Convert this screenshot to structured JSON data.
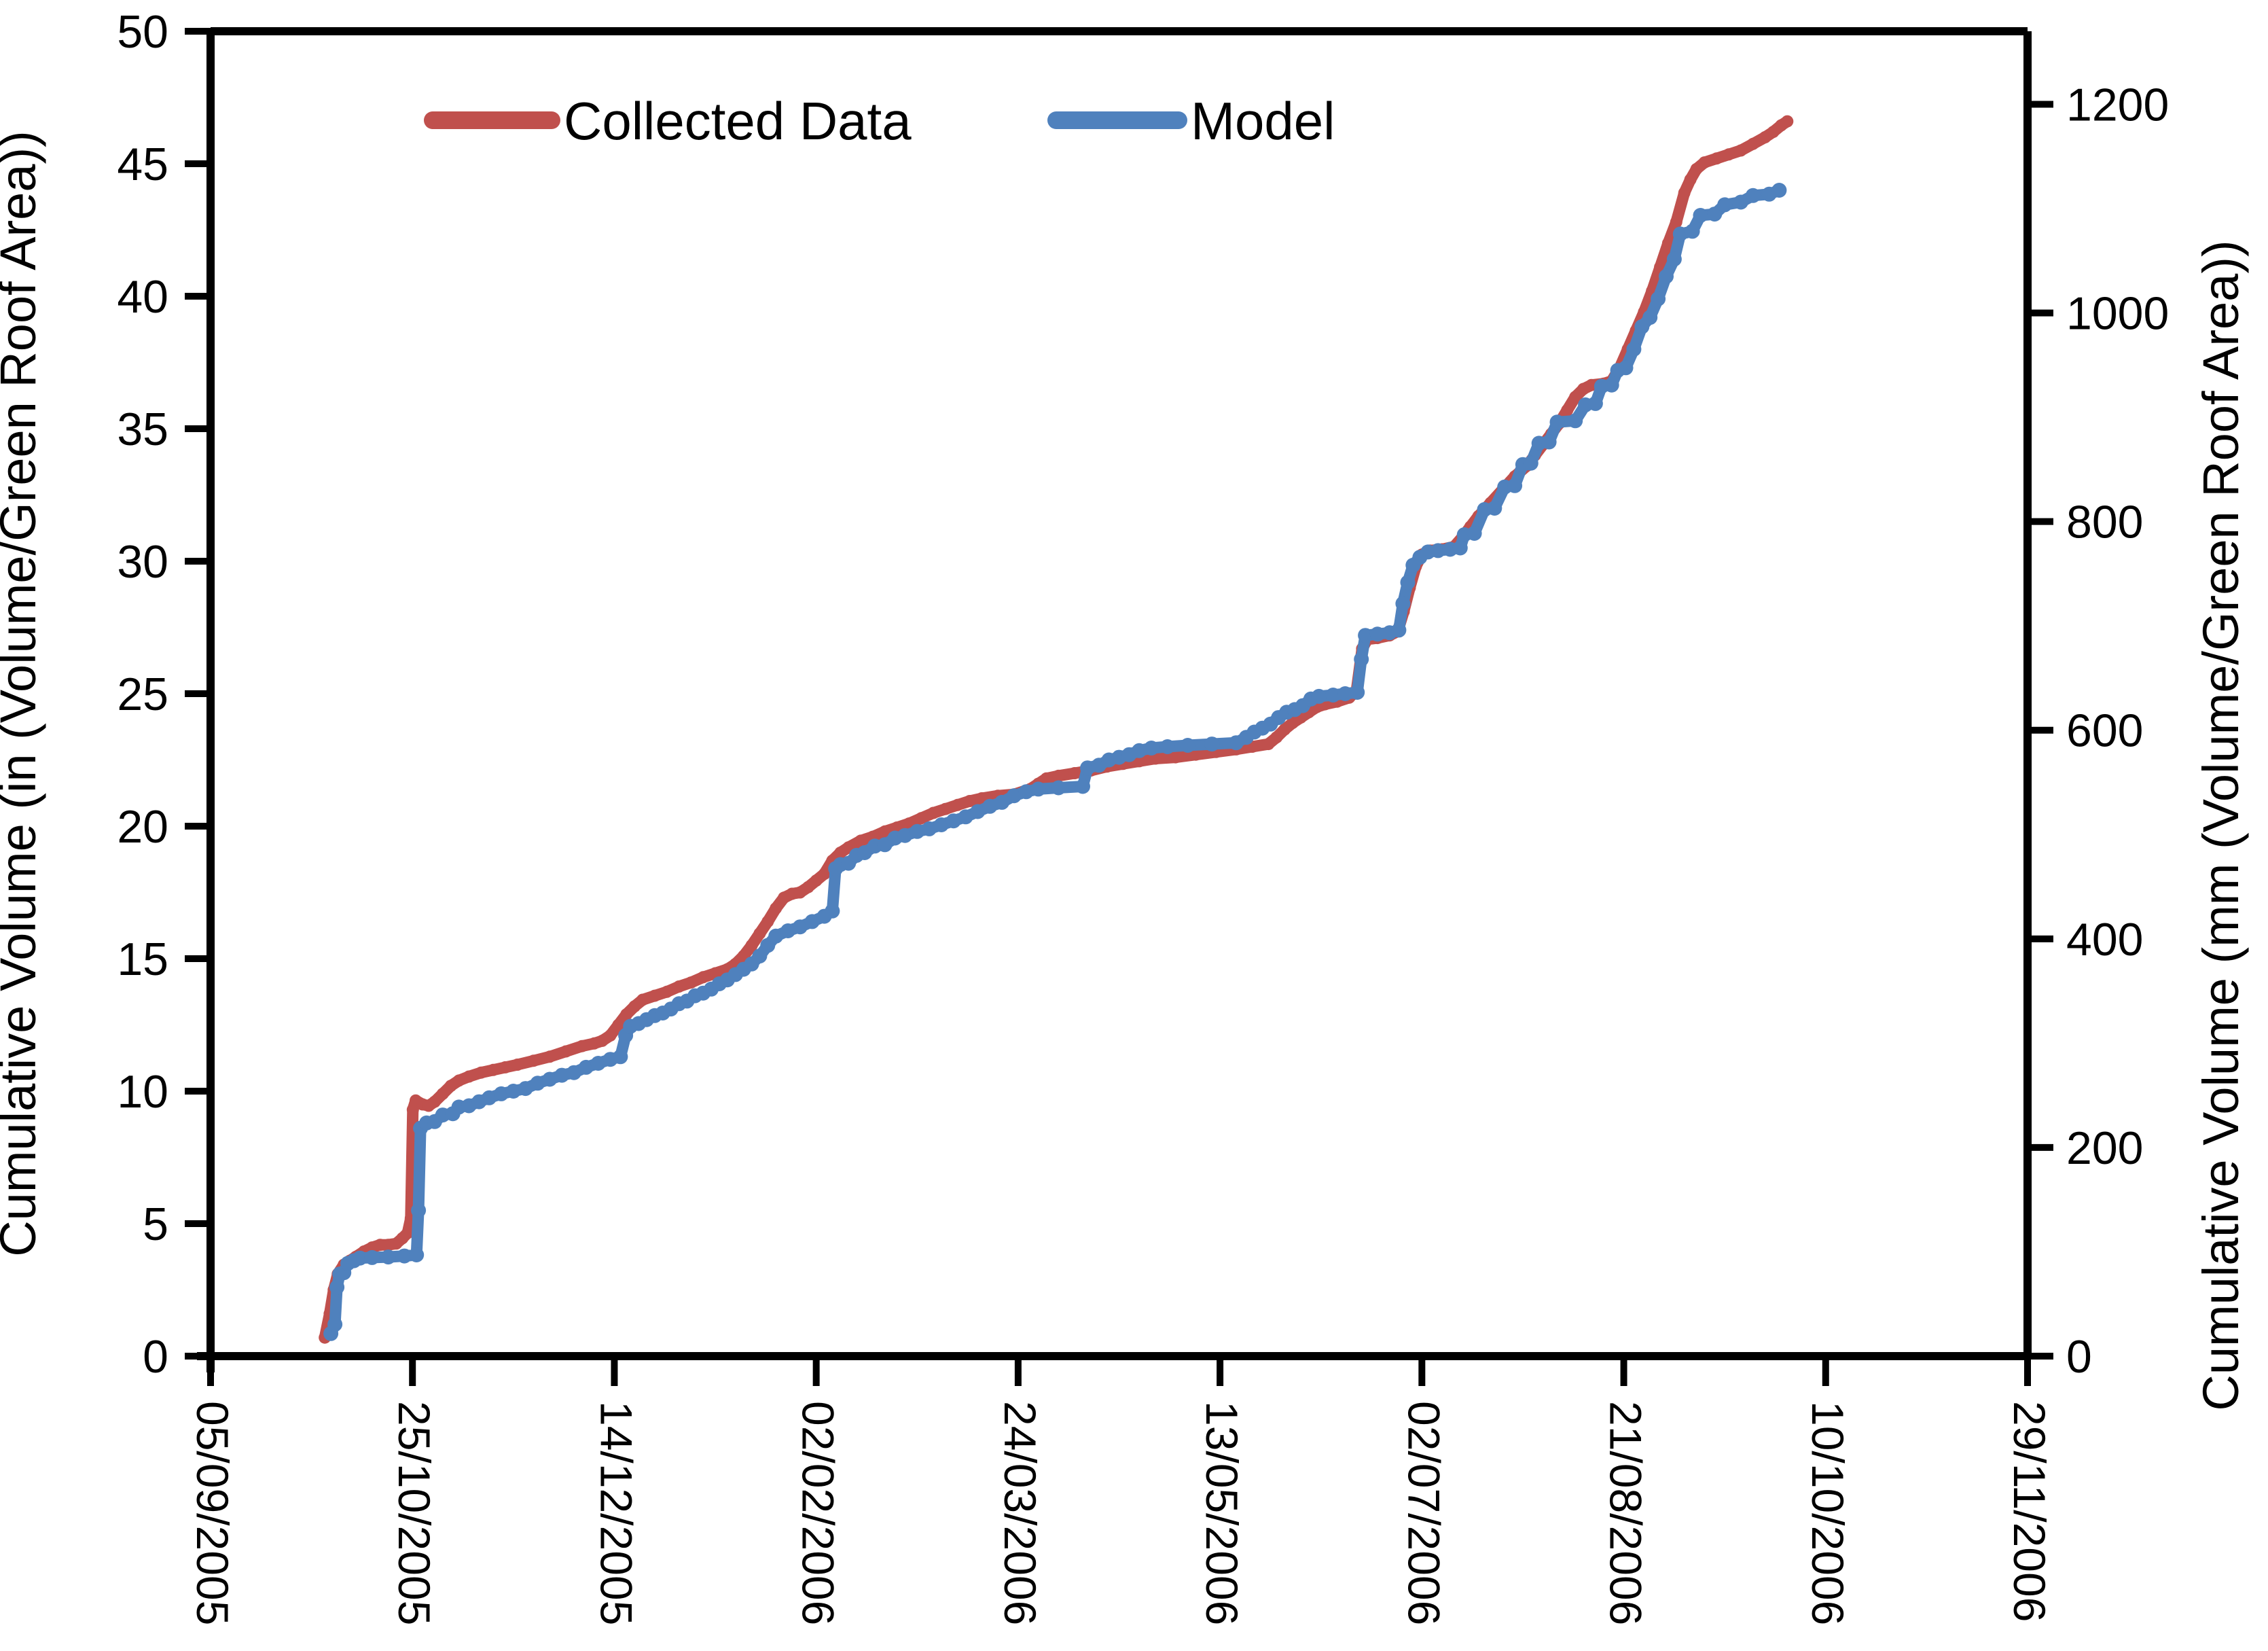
{
  "chart_data": {
    "type": "line",
    "title": "",
    "x_unit": "days since 05/09/2005",
    "x_range_days": [
      0,
      450
    ],
    "x_axis": {
      "tick_interval_days": 50,
      "tick_labels": [
        "05/09/2005",
        "25/10/2005",
        "14/12/2005",
        "02/02/2006",
        "24/03/2006",
        "13/05/2006",
        "02/07/2006",
        "21/08/2006",
        "10/10/2006",
        "29/11/2006"
      ]
    },
    "y_left": {
      "label": "Cumulative Volume (in (Volume/Green Roof Area))",
      "min": 0,
      "max": 50,
      "tick_step": 5,
      "tick_labels": [
        "0",
        "5",
        "10",
        "15",
        "20",
        "25",
        "30",
        "35",
        "40",
        "45",
        "50"
      ]
    },
    "y_right": {
      "label": "Cumulative Volume (mm (Volume/Green Roof Area))",
      "min": 0,
      "max": 1270,
      "tick_step": 200,
      "mm_per_in": 25.4,
      "tick_labels": [
        "0",
        "200",
        "400",
        "600",
        "800",
        "1000",
        "1200"
      ]
    },
    "legend_position": "top-center-inside",
    "grid": false,
    "series": [
      {
        "name": "Collected Data",
        "color": "#C0504D",
        "marker_radius": 9,
        "points": [
          [
            28.3,
            0.7
          ],
          [
            29.5,
            1.6
          ],
          [
            30.5,
            2.5
          ],
          [
            31.5,
            3.1
          ],
          [
            33,
            3.45
          ],
          [
            34.5,
            3.6
          ],
          [
            36,
            3.75
          ],
          [
            38,
            3.95
          ],
          [
            40,
            4.1
          ],
          [
            42,
            4.2
          ],
          [
            44,
            4.2
          ],
          [
            46,
            4.25
          ],
          [
            47.5,
            4.45
          ],
          [
            48.8,
            4.65
          ],
          [
            49.6,
            5.2
          ],
          [
            50.1,
            9.3
          ],
          [
            50.8,
            9.65
          ],
          [
            52.5,
            9.5
          ],
          [
            54,
            9.45
          ],
          [
            55.5,
            9.6
          ],
          [
            57.5,
            9.9
          ],
          [
            59.5,
            10.2
          ],
          [
            61.5,
            10.4
          ],
          [
            64,
            10.55
          ],
          [
            67,
            10.7
          ],
          [
            70,
            10.8
          ],
          [
            73,
            10.9
          ],
          [
            76,
            11.0
          ],
          [
            80,
            11.15
          ],
          [
            84,
            11.3
          ],
          [
            88,
            11.5
          ],
          [
            92,
            11.7
          ],
          [
            95,
            11.8
          ],
          [
            97,
            11.9
          ],
          [
            99,
            12.1
          ],
          [
            101,
            12.5
          ],
          [
            103,
            12.9
          ],
          [
            105,
            13.2
          ],
          [
            107,
            13.45
          ],
          [
            110,
            13.6
          ],
          [
            113,
            13.75
          ],
          [
            116,
            13.95
          ],
          [
            119,
            14.1
          ],
          [
            122,
            14.3
          ],
          [
            125,
            14.45
          ],
          [
            128,
            14.6
          ],
          [
            130,
            14.8
          ],
          [
            132,
            15.1
          ],
          [
            134,
            15.5
          ],
          [
            136,
            15.95
          ],
          [
            138,
            16.4
          ],
          [
            140,
            16.9
          ],
          [
            142,
            17.3
          ],
          [
            144,
            17.45
          ],
          [
            146,
            17.5
          ],
          [
            148,
            17.7
          ],
          [
            150,
            17.95
          ],
          [
            152,
            18.2
          ],
          [
            154,
            18.7
          ],
          [
            156,
            19.0
          ],
          [
            158,
            19.2
          ],
          [
            161,
            19.45
          ],
          [
            164,
            19.6
          ],
          [
            167,
            19.8
          ],
          [
            170,
            19.95
          ],
          [
            173,
            20.1
          ],
          [
            176,
            20.3
          ],
          [
            179,
            20.5
          ],
          [
            182,
            20.65
          ],
          [
            185,
            20.8
          ],
          [
            188,
            20.95
          ],
          [
            191,
            21.05
          ],
          [
            195,
            21.15
          ],
          [
            199,
            21.2
          ],
          [
            203,
            21.4
          ],
          [
            205,
            21.6
          ],
          [
            207,
            21.8
          ],
          [
            210,
            21.9
          ],
          [
            214,
            22.0
          ],
          [
            218,
            22.1
          ],
          [
            222,
            22.25
          ],
          [
            226,
            22.35
          ],
          [
            230,
            22.45
          ],
          [
            234,
            22.55
          ],
          [
            239,
            22.6
          ],
          [
            244,
            22.7
          ],
          [
            249,
            22.8
          ],
          [
            254,
            22.9
          ],
          [
            258,
            23.0
          ],
          [
            262,
            23.1
          ],
          [
            264,
            23.35
          ],
          [
            266,
            23.65
          ],
          [
            268,
            23.9
          ],
          [
            270,
            24.1
          ],
          [
            272,
            24.3
          ],
          [
            274,
            24.5
          ],
          [
            276,
            24.6
          ],
          [
            279,
            24.7
          ],
          [
            282,
            24.85
          ],
          [
            283.8,
            25.1
          ],
          [
            285.2,
            26.7
          ],
          [
            286.5,
            27.05
          ],
          [
            289,
            27.1
          ],
          [
            292,
            27.2
          ],
          [
            294,
            27.35
          ],
          [
            295.5,
            28.1
          ],
          [
            297,
            29.0
          ],
          [
            298.5,
            29.8
          ],
          [
            300,
            30.25
          ],
          [
            302,
            30.4
          ],
          [
            305,
            30.45
          ],
          [
            308,
            30.55
          ],
          [
            310,
            30.9
          ],
          [
            312,
            31.3
          ],
          [
            314,
            31.7
          ],
          [
            317,
            32.2
          ],
          [
            320,
            32.7
          ],
          [
            323,
            33.2
          ],
          [
            326,
            33.6
          ],
          [
            328,
            34.0
          ],
          [
            330,
            34.4
          ],
          [
            332,
            34.8
          ],
          [
            334,
            35.2
          ],
          [
            336,
            35.7
          ],
          [
            338,
            36.2
          ],
          [
            340,
            36.5
          ],
          [
            342,
            36.65
          ],
          [
            345,
            36.7
          ],
          [
            347,
            36.8
          ],
          [
            349,
            37.3
          ],
          [
            351,
            38.0
          ],
          [
            353,
            38.7
          ],
          [
            355,
            39.4
          ],
          [
            357,
            40.2
          ],
          [
            359,
            41.1
          ],
          [
            361,
            42.0
          ],
          [
            363,
            42.8
          ],
          [
            365,
            43.9
          ],
          [
            366.5,
            44.4
          ],
          [
            368,
            44.8
          ],
          [
            370,
            45.05
          ],
          [
            373,
            45.2
          ],
          [
            376,
            45.35
          ],
          [
            379,
            45.5
          ],
          [
            382,
            45.75
          ],
          [
            385,
            46.0
          ],
          [
            387,
            46.2
          ],
          [
            389,
            46.45
          ],
          [
            390.5,
            46.6
          ]
        ]
      },
      {
        "name": "Model",
        "color": "#4F81BD",
        "marker_radius": 11,
        "points": [
          [
            29.8,
            0.85
          ],
          [
            30.8,
            1.2
          ],
          [
            31.3,
            2.6
          ],
          [
            32,
            3.1
          ],
          [
            33,
            3.15
          ],
          [
            34,
            3.5
          ],
          [
            35.5,
            3.6
          ],
          [
            37,
            3.7
          ],
          [
            40,
            3.72
          ],
          [
            44,
            3.74
          ],
          [
            48,
            3.78
          ],
          [
            51,
            3.82
          ],
          [
            51.5,
            5.5
          ],
          [
            52,
            8.6
          ],
          [
            53.5,
            8.8
          ],
          [
            55.5,
            8.85
          ],
          [
            57.5,
            9.1
          ],
          [
            60,
            9.15
          ],
          [
            61.5,
            9.4
          ],
          [
            64,
            9.45
          ],
          [
            66.5,
            9.6
          ],
          [
            69,
            9.75
          ],
          [
            72,
            9.9
          ],
          [
            75,
            10.0
          ],
          [
            78,
            10.1
          ],
          [
            81,
            10.3
          ],
          [
            84,
            10.45
          ],
          [
            87,
            10.6
          ],
          [
            90,
            10.7
          ],
          [
            93,
            10.9
          ],
          [
            96,
            11.05
          ],
          [
            99,
            11.2
          ],
          [
            101.5,
            11.3
          ],
          [
            102.8,
            12.1
          ],
          [
            104,
            12.45
          ],
          [
            106,
            12.55
          ],
          [
            108,
            12.7
          ],
          [
            110,
            12.85
          ],
          [
            112,
            12.95
          ],
          [
            114,
            13.1
          ],
          [
            116,
            13.3
          ],
          [
            118,
            13.4
          ],
          [
            120,
            13.6
          ],
          [
            122,
            13.7
          ],
          [
            124,
            13.85
          ],
          [
            126,
            14.05
          ],
          [
            128,
            14.2
          ],
          [
            130,
            14.4
          ],
          [
            132,
            14.6
          ],
          [
            134,
            14.8
          ],
          [
            136,
            15.1
          ],
          [
            138,
            15.5
          ],
          [
            140,
            15.85
          ],
          [
            143,
            16.05
          ],
          [
            146,
            16.2
          ],
          [
            149,
            16.4
          ],
          [
            152,
            16.6
          ],
          [
            154,
            16.8
          ],
          [
            154.8,
            18.4
          ],
          [
            156,
            18.55
          ],
          [
            158,
            18.6
          ],
          [
            160,
            18.9
          ],
          [
            162,
            19.0
          ],
          [
            164.5,
            19.25
          ],
          [
            167,
            19.3
          ],
          [
            169.5,
            19.55
          ],
          [
            172,
            19.65
          ],
          [
            175,
            19.8
          ],
          [
            178,
            19.9
          ],
          [
            181,
            20.05
          ],
          [
            184,
            20.2
          ],
          [
            187,
            20.35
          ],
          [
            190,
            20.55
          ],
          [
            193,
            20.75
          ],
          [
            196,
            20.9
          ],
          [
            199,
            21.15
          ],
          [
            202,
            21.3
          ],
          [
            205,
            21.4
          ],
          [
            210,
            21.45
          ],
          [
            216,
            21.5
          ],
          [
            217.2,
            22.2
          ],
          [
            220,
            22.3
          ],
          [
            222.5,
            22.5
          ],
          [
            225,
            22.6
          ],
          [
            227.5,
            22.7
          ],
          [
            230,
            22.85
          ],
          [
            233,
            22.95
          ],
          [
            237,
            23.0
          ],
          [
            242,
            23.05
          ],
          [
            248,
            23.1
          ],
          [
            254,
            23.15
          ],
          [
            256.5,
            23.35
          ],
          [
            258.5,
            23.55
          ],
          [
            260.5,
            23.7
          ],
          [
            262.5,
            23.85
          ],
          [
            264.5,
            24.1
          ],
          [
            266.5,
            24.3
          ],
          [
            268.5,
            24.4
          ],
          [
            270.5,
            24.55
          ],
          [
            272.5,
            24.8
          ],
          [
            274.5,
            24.9
          ],
          [
            278,
            24.95
          ],
          [
            281,
            25.0
          ],
          [
            284,
            25.05
          ],
          [
            285,
            26.3
          ],
          [
            286,
            27.2
          ],
          [
            289,
            27.25
          ],
          [
            292,
            27.3
          ],
          [
            294.3,
            27.4
          ],
          [
            295.3,
            28.4
          ],
          [
            296.5,
            29.2
          ],
          [
            297.8,
            29.85
          ],
          [
            299.5,
            30.15
          ],
          [
            301.5,
            30.35
          ],
          [
            304,
            30.4
          ],
          [
            307,
            30.45
          ],
          [
            309.5,
            30.5
          ],
          [
            310.5,
            31.0
          ],
          [
            313,
            31.05
          ],
          [
            315.5,
            31.95
          ],
          [
            318,
            32.0
          ],
          [
            320.5,
            32.8
          ],
          [
            323,
            32.85
          ],
          [
            325,
            33.65
          ],
          [
            327,
            33.7
          ],
          [
            329,
            34.45
          ],
          [
            331.5,
            34.5
          ],
          [
            333.5,
            35.25
          ],
          [
            338,
            35.3
          ],
          [
            340.5,
            35.9
          ],
          [
            343,
            35.95
          ],
          [
            344.5,
            36.6
          ],
          [
            347,
            36.65
          ],
          [
            348.5,
            37.2
          ],
          [
            350.5,
            37.3
          ],
          [
            352.5,
            38.0
          ],
          [
            354.5,
            38.85
          ],
          [
            356.5,
            39.2
          ],
          [
            358.5,
            39.9
          ],
          [
            360.5,
            40.75
          ],
          [
            362.5,
            41.4
          ],
          [
            364,
            42.35
          ],
          [
            367,
            42.45
          ],
          [
            369,
            43.05
          ],
          [
            372.5,
            43.1
          ],
          [
            375,
            43.45
          ],
          [
            379,
            43.55
          ],
          [
            382,
            43.8
          ],
          [
            386,
            43.85
          ],
          [
            388.5,
            44.0
          ]
        ]
      }
    ]
  },
  "legend": {
    "items": [
      {
        "label": "Collected Data",
        "color": "#C0504D"
      },
      {
        "label": "Model",
        "color": "#4F81BD"
      }
    ]
  },
  "colors": {
    "axis": "#000000",
    "background": "#FFFFFF",
    "collected": "#C0504D",
    "model": "#4F81BD"
  }
}
